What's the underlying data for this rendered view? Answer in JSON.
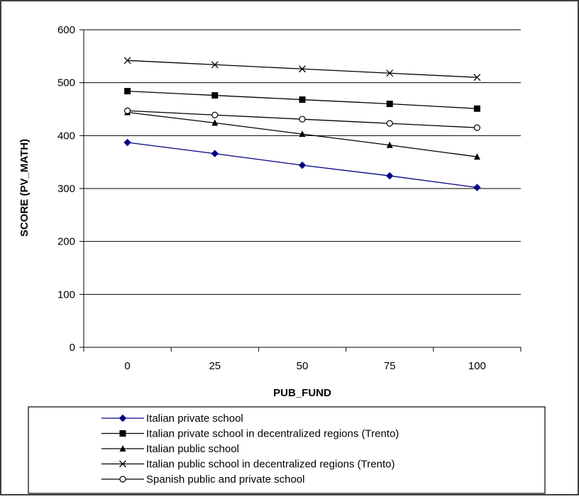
{
  "chart_data": {
    "type": "line",
    "x": [
      0,
      25,
      50,
      75,
      100
    ],
    "xlabel": "PUB_FUND",
    "ylabel": "SCORE (PV_MATH)",
    "ylim": [
      0,
      600
    ],
    "yticks": [
      0,
      100,
      200,
      300,
      400,
      500,
      600
    ],
    "grid": "horizontal",
    "legend_position": "bottom",
    "series": [
      {
        "name": "Italian private school",
        "values": [
          387,
          366,
          344,
          324,
          302
        ],
        "color": "#000080",
        "marker": "diamond"
      },
      {
        "name": "Italian private school in decentralized regions (Trento)",
        "values": [
          484,
          476,
          468,
          460,
          451
        ],
        "color": "#000000",
        "marker": "square"
      },
      {
        "name": "Italian public school",
        "values": [
          444,
          424,
          403,
          382,
          360
        ],
        "color": "#000000",
        "marker": "triangle"
      },
      {
        "name": "Italian public school in decentralized regions (Trento)",
        "values": [
          542,
          534,
          526,
          518,
          510
        ],
        "color": "#000000",
        "marker": "x"
      },
      {
        "name": "Spanish public and private school",
        "values": [
          447,
          439,
          431,
          423,
          415
        ],
        "color": "#000000",
        "marker": "circle"
      }
    ]
  }
}
